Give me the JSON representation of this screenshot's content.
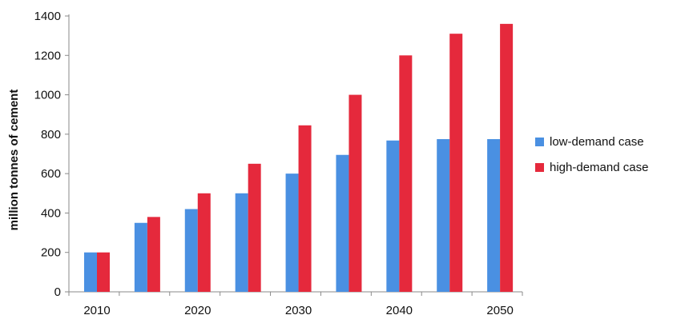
{
  "chart_data": {
    "type": "bar",
    "title": "",
    "xlabel": "",
    "ylabel": "million tonnes of cement",
    "ylim": [
      0,
      1400
    ],
    "y_ticks": [
      0,
      200,
      400,
      600,
      800,
      1000,
      1200,
      1400
    ],
    "x_tick_labels": [
      "2010",
      "2020",
      "2030",
      "2040",
      "2050"
    ],
    "categories": [
      "2010",
      "2015",
      "2020",
      "2025",
      "2030",
      "2035",
      "2040",
      "2045",
      "2050"
    ],
    "legend_position": "right",
    "grid": false,
    "series": [
      {
        "name": "low-demand case",
        "color": "#4a90e2",
        "values": [
          200,
          350,
          420,
          500,
          600,
          695,
          768,
          775,
          775
        ]
      },
      {
        "name": "high-demand case",
        "color": "#e5293c",
        "values": [
          200,
          380,
          500,
          650,
          845,
          1000,
          1200,
          1310,
          1360
        ]
      }
    ]
  }
}
